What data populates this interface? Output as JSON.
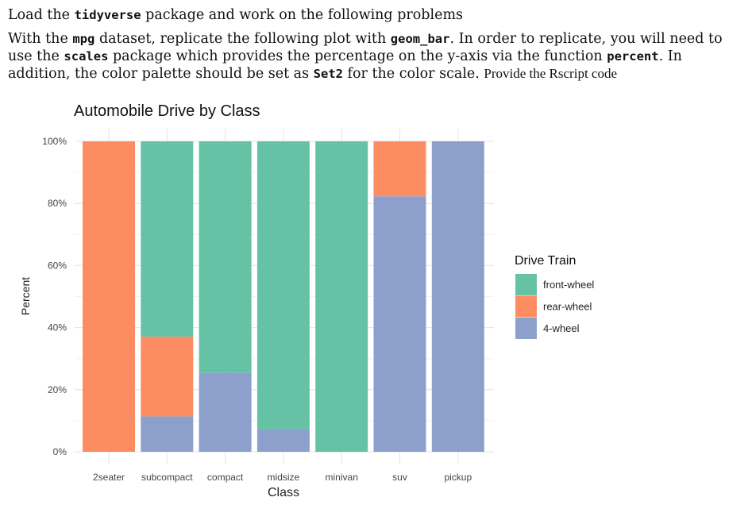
{
  "text": {
    "line1_a": "Load the ",
    "line1_code": "tidyverse",
    "line1_b": " package and work on the following problems",
    "p2_a": "With the ",
    "p2_c1": "mpg",
    "p2_b": " dataset, replicate the following plot with ",
    "p2_c2": "geom_bar",
    "p2_c": ". In order to replicate, you will need to use the ",
    "p2_c3": "scales",
    "p2_d": " package which provides the percentage on the y-axis via the function ",
    "p2_c4": "percent",
    "p2_e": ". In addition, the color palette should be set as ",
    "p2_c5": "Set2",
    "p2_f": " for the color scale. ",
    "p2_g": "Provide the Rscript code"
  },
  "chart_data": {
    "type": "bar",
    "stacked": true,
    "title": "Automobile Drive by Class",
    "xlabel": "Class",
    "ylabel": "Percent",
    "ylim": [
      0,
      1
    ],
    "yticks": [
      0,
      0.2,
      0.4,
      0.6,
      0.8,
      1.0
    ],
    "ytick_labels": [
      "0%",
      "20%",
      "40%",
      "60%",
      "80%",
      "100%"
    ],
    "categories": [
      "2seater",
      "subcompact",
      "compact",
      "midsize",
      "minivan",
      "suv",
      "pickup"
    ],
    "legend_title": "Drive Train",
    "legend_position": "right",
    "series": [
      {
        "name": "front-wheel",
        "color": "#66C2A5",
        "values": [
          0,
          0.629,
          0.745,
          0.927,
          1.0,
          0,
          0
        ]
      },
      {
        "name": "rear-wheel",
        "color": "#FC8D62",
        "values": [
          1.0,
          0.257,
          0,
          0,
          0,
          0.177,
          0
        ]
      },
      {
        "name": "4-wheel",
        "color": "#8DA0CB",
        "values": [
          0,
          0.114,
          0.255,
          0.073,
          0,
          0.823,
          1.0
        ]
      }
    ],
    "grid": true
  }
}
